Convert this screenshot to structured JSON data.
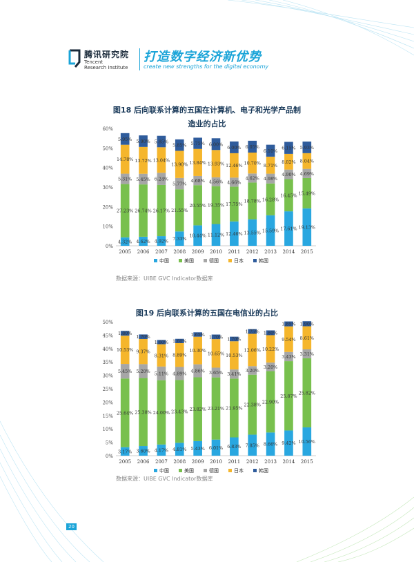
{
  "header": {
    "org_cn": "腾讯研究院",
    "org_en_line1": "Tencent",
    "org_en_line2": "Research Institute",
    "slogan_cn": "打造数字经济新优势",
    "slogan_en": "create new strengths for the digital economy"
  },
  "colors": {
    "china": "#29a7e0",
    "usa": "#78c04d",
    "germany": "#a6a6a6",
    "japan": "#f5b62c",
    "korea": "#2f5c9c",
    "accent": "#1aa4d8"
  },
  "figure18": {
    "title_line1": "图18  后向联系计算的五国在计算机、电子和光学产品制",
    "title_line2": "造业的占比",
    "source": "数据来源：UIBE GVC Indicator数据库"
  },
  "figure19": {
    "title_line1": "图19  后向联系计算的五国在电信业的占比",
    "source": "数据来源：UIBE GVC Indicator数据库"
  },
  "footer": {
    "page_number": "20"
  },
  "chart_data": [
    {
      "type": "bar",
      "stacked": true,
      "title": "图18  后向联系计算的五国在计算机、电子和光学产品制造业的占比",
      "categories": [
        "2005",
        "2006",
        "2007",
        "2008",
        "2009",
        "2010",
        "2011",
        "2012",
        "2013",
        "2014",
        "2015"
      ],
      "ylim": [
        0,
        60
      ],
      "yticks": [
        "0%",
        "10%",
        "20%",
        "30%",
        "40%",
        "50%",
        "60%"
      ],
      "legend": [
        "中国",
        "美国",
        "德国",
        "日本",
        "韩国"
      ],
      "legend_position": "bottom",
      "series": [
        {
          "name": "中国",
          "values": [
            4.32,
            4.62,
            4.92,
            7.33,
            10.44,
            11.12,
            12.46,
            13.55,
            15.59,
            17.61,
            19.13
          ],
          "labels": [
            "4.32%",
            "4.62%",
            "4.92%",
            "7.33%",
            "10.44%",
            "11.12%",
            "12.46%",
            "13.55%",
            "15.59%",
            "17.61%",
            "19.13%"
          ]
        },
        {
          "name": "美国",
          "values": [
            27.23,
            26.74,
            26.17,
            21.55,
            20.55,
            19.35,
            17.75,
            18.78,
            16.28,
            16.45,
            15.49
          ],
          "labels": [
            "27.23%",
            "26.74%",
            "26.17%",
            "21.55%",
            "20.55%",
            "19.35%",
            "17.75%",
            "18.78%",
            "16.28%",
            "16.45%",
            "15.49%"
          ]
        },
        {
          "name": "德国",
          "values": [
            5.31,
            5.45,
            6.24,
            5.77,
            4.68,
            4.56,
            4.66,
            4.62,
            4.98,
            4.9,
            4.69
          ],
          "labels": [
            "5.31%",
            "5.45%",
            "6.24%",
            "5.77%",
            "4.68%",
            "4.56%",
            "4.66%",
            "4.62%",
            "4.98%",
            "4.90%",
            "4.69%"
          ]
        },
        {
          "name": "日本",
          "values": [
            14.78,
            13.72,
            13.04,
            13.9,
            13.84,
            13.93,
            12.46,
            10.7,
            8.71,
            8.02,
            8.04
          ],
          "labels": [
            "14.78%",
            "13.72%",
            "13.04%",
            "13.90%",
            "13.84%",
            "13.93%",
            "12.46%",
            "10.70%",
            "8.71%",
            "8.02%",
            "8.04%"
          ]
        },
        {
          "name": "韩国",
          "values": [
            5.95,
            5.9,
            5.85,
            5.85,
            5.75,
            6.0,
            6.0,
            6.05,
            6.1,
            6.15,
            5.93
          ],
          "labels": [
            "5.95%",
            "5.90%",
            "5.85%",
            "5.85%",
            "5.75%",
            "6.00%",
            "6.00%",
            "6.05%",
            "6.10%",
            "6.15%",
            "5.93%"
          ]
        }
      ]
    },
    {
      "type": "bar",
      "stacked": true,
      "title": "图19  后向联系计算的五国在电信业的占比",
      "categories": [
        "2005",
        "2006",
        "2007",
        "2008",
        "2009",
        "2010",
        "2011",
        "2012",
        "2013",
        "2014",
        "2015"
      ],
      "ylim": [
        0,
        50
      ],
      "yticks": [
        "0%",
        "5%",
        "10%",
        "15%",
        "20%",
        "25%",
        "30%",
        "35%",
        "40%",
        "45%",
        "50%"
      ],
      "legend": [
        "中国",
        "美国",
        "德国",
        "日本",
        "韩国"
      ],
      "legend_position": "bottom",
      "series": [
        {
          "name": "中国",
          "values": [
            3.17,
            3.6,
            4.17,
            4.81,
            5.43,
            6.01,
            6.83,
            7.85,
            8.66,
            9.42,
            10.56
          ],
          "labels": [
            "3.17%",
            "3.60%",
            "4.17%",
            "4.81%",
            "5.43%",
            "6.01%",
            "6.83%",
            "7.85%",
            "8.66%",
            "9.42%",
            "10.56%"
          ]
        },
        {
          "name": "美国",
          "values": [
            25.64,
            25.38,
            24.0,
            23.43,
            23.82,
            23.21,
            21.95,
            22.38,
            22.9,
            25.87,
            25.82
          ],
          "labels": [
            "25.64%",
            "25.38%",
            "24.00%",
            "23.43%",
            "23.82%",
            "23.21%",
            "21.95%",
            "22.38%",
            "22.90%",
            "25.87%",
            "25.82%"
          ]
        },
        {
          "name": "德国",
          "values": [
            5.45,
            5.2,
            5.11,
            4.89,
            4.86,
            3.65,
            3.41,
            3.2,
            3.2,
            3.43,
            3.31
          ],
          "labels": [
            "5.45%",
            "5.20%",
            "5.11%",
            "4.89%",
            "4.86%",
            "3.65%",
            "3.41%",
            "3.20%",
            "3.20%",
            "3.43%",
            "3.31%"
          ]
        },
        {
          "name": "日本",
          "values": [
            10.53,
            9.37,
            8.31,
            8.89,
            10.3,
            10.65,
            10.53,
            12.06,
            10.22,
            9.54,
            8.61
          ],
          "labels": [
            "10.53%",
            "9.37%",
            "8.31%",
            "8.89%",
            "10.30%",
            "10.65%",
            "10.53%",
            "12.06%",
            "10.22%",
            "9.54%",
            "8.61%"
          ]
        },
        {
          "name": "韩国",
          "values": [
            1.8,
            1.7,
            1.6,
            1.6,
            1.65,
            1.7,
            1.7,
            1.75,
            1.8,
            1.85,
            1.9
          ],
          "labels": [
            "1.80%",
            "1.70%",
            "1.60%",
            "1.60%",
            "1.65%",
            "1.70%",
            "1.70%",
            "1.75%",
            "1.80%",
            "1.85%",
            "1.90%"
          ]
        }
      ]
    }
  ]
}
